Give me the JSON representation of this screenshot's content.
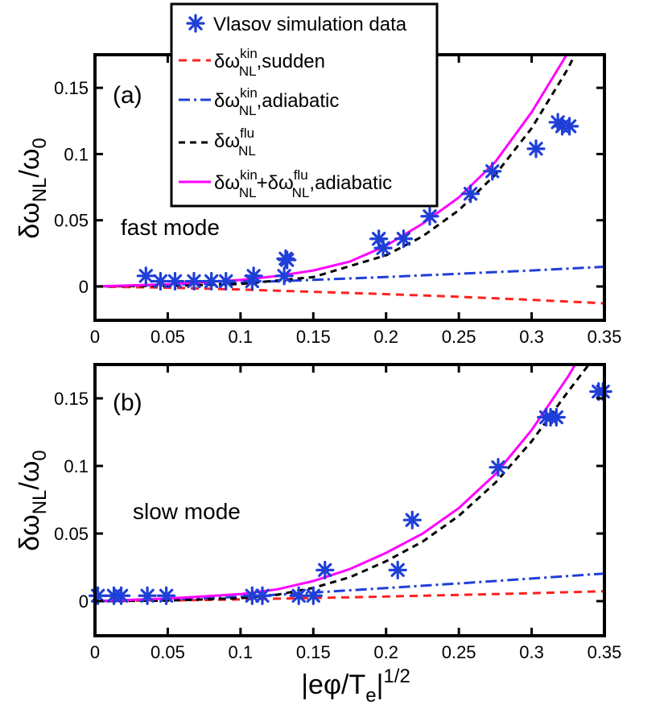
{
  "chart_data": [
    {
      "type": "line",
      "panel_label": "(a)",
      "annotation": "fast mode",
      "xlim": [
        0,
        0.35
      ],
      "ylim": [
        -0.013,
        0.175
      ],
      "xticks": [
        {
          "value": 0,
          "label": "0"
        },
        {
          "value": 0.05,
          "label": "0.05"
        },
        {
          "value": 0.1,
          "label": "0.1"
        },
        {
          "value": 0.15,
          "label": "0.15"
        },
        {
          "value": 0.2,
          "label": "0.2"
        },
        {
          "value": 0.25,
          "label": "0.25"
        },
        {
          "value": 0.3,
          "label": "0.3"
        },
        {
          "value": 0.35,
          "label": "0.35"
        }
      ],
      "yticks": [
        {
          "value": 0,
          "label": "0"
        },
        {
          "value": 0.05,
          "label": "0.05"
        },
        {
          "value": 0.1,
          "label": "0.1"
        },
        {
          "value": 0.15,
          "label": "0.15"
        }
      ],
      "series": [
        {
          "name": "kin_sudden",
          "color": "#ff2020",
          "dash": "10,7",
          "x": [
            0,
            0.05,
            0.1,
            0.15,
            0.2,
            0.25,
            0.3,
            0.35
          ],
          "y": [
            0,
            -0.0009,
            -0.0023,
            -0.004,
            -0.0058,
            -0.0078,
            -0.0101,
            -0.0127
          ]
        },
        {
          "name": "kin_adiabatic",
          "color": "#1f3fd8",
          "dash": "14,5,3,5",
          "x": [
            0,
            0.05,
            0.1,
            0.15,
            0.2,
            0.25,
            0.3,
            0.35
          ],
          "y": [
            0,
            0.0012,
            0.003,
            0.005,
            0.0072,
            0.0096,
            0.0121,
            0.0149
          ]
        },
        {
          "name": "flu",
          "color": "#000000",
          "dash": "8,6",
          "x": [
            0,
            0.05,
            0.1,
            0.15,
            0.2,
            0.225,
            0.25,
            0.275,
            0.3,
            0.325,
            0.35
          ],
          "y": [
            0,
            0.0005,
            0.0019,
            0.0071,
            0.0236,
            0.0378,
            0.0576,
            0.0844,
            0.1195,
            0.1646,
            0.2211
          ]
        },
        {
          "name": "total_adiabatic",
          "color": "#ff00ff",
          "dash": "",
          "x": [
            0,
            0.05,
            0.1,
            0.125,
            0.15,
            0.175,
            0.2,
            0.225,
            0.25,
            0.275,
            0.3,
            0.325,
            0.35
          ],
          "y": [
            0,
            0.0017,
            0.0049,
            0.0079,
            0.0121,
            0.0188,
            0.0308,
            0.0474,
            0.0672,
            0.094,
            0.1316,
            0.1767,
            0.236
          ]
        }
      ],
      "scatter": {
        "name": "Vlasov simulation data",
        "color": "#1f3fd8",
        "x": [
          0.035,
          0.045,
          0.055,
          0.068,
          0.08,
          0.09,
          0.108,
          0.109,
          0.13,
          0.132,
          0.131,
          0.195,
          0.198,
          0.212,
          0.23,
          0.258,
          0.273,
          0.303,
          0.318,
          0.321,
          0.326
        ],
        "y": [
          0.008,
          0.004,
          0.004,
          0.004,
          0.004,
          0.004,
          0.004,
          0.008,
          0.008,
          0.02,
          0.021,
          0.036,
          0.029,
          0.036,
          0.053,
          0.07,
          0.087,
          0.104,
          0.124,
          0.121,
          0.121
        ]
      }
    },
    {
      "type": "line",
      "panel_label": "(b)",
      "annotation": "slow mode",
      "xlim": [
        0,
        0.35
      ],
      "ylim": [
        -0.013,
        0.175
      ],
      "xticks": [
        {
          "value": 0,
          "label": "0"
        },
        {
          "value": 0.05,
          "label": "0.05"
        },
        {
          "value": 0.1,
          "label": "0.1"
        },
        {
          "value": 0.15,
          "label": "0.15"
        },
        {
          "value": 0.2,
          "label": "0.2"
        },
        {
          "value": 0.25,
          "label": "0.25"
        },
        {
          "value": 0.3,
          "label": "0.3"
        },
        {
          "value": 0.35,
          "label": "0.35"
        }
      ],
      "yticks": [
        {
          "value": 0,
          "label": "0"
        },
        {
          "value": 0.05,
          "label": "0.05"
        },
        {
          "value": 0.1,
          "label": "0.1"
        },
        {
          "value": 0.15,
          "label": "0.15"
        }
      ],
      "series": [
        {
          "name": "kin_sudden",
          "color": "#ff2020",
          "dash": "10,7",
          "x": [
            0,
            0.05,
            0.1,
            0.15,
            0.2,
            0.25,
            0.3,
            0.35
          ],
          "y": [
            0,
            0.0005,
            0.0013,
            0.0023,
            0.0034,
            0.0046,
            0.0059,
            0.0073
          ]
        },
        {
          "name": "kin_adiabatic",
          "color": "#1f3fd8",
          "dash": "14,5,3,5",
          "x": [
            0,
            0.05,
            0.1,
            0.15,
            0.2,
            0.25,
            0.3,
            0.35
          ],
          "y": [
            0,
            0.0012,
            0.0032,
            0.0063,
            0.0097,
            0.0131,
            0.0167,
            0.0204
          ]
        },
        {
          "name": "flu",
          "color": "#000000",
          "dash": "8,6",
          "x": [
            0,
            0.05,
            0.1,
            0.125,
            0.15,
            0.175,
            0.2,
            0.225,
            0.25,
            0.275,
            0.3,
            0.325,
            0.35
          ],
          "y": [
            0,
            0.0004,
            0.0022,
            0.0047,
            0.0098,
            0.0176,
            0.0295,
            0.0439,
            0.0631,
            0.0875,
            0.1182,
            0.155,
            0.19
          ]
        },
        {
          "name": "total_adiabatic",
          "color": "#ff00ff",
          "dash": "",
          "x": [
            0,
            0.05,
            0.1,
            0.125,
            0.15,
            0.175,
            0.2,
            0.225,
            0.25,
            0.275,
            0.3,
            0.325,
            0.35
          ],
          "y": [
            0,
            0.0019,
            0.0052,
            0.0087,
            0.0149,
            0.0237,
            0.0357,
            0.0499,
            0.0688,
            0.0938,
            0.1266,
            0.1661,
            0.2116
          ]
        }
      ],
      "scatter": {
        "name": "Vlasov simulation data",
        "color": "#1f3fd8",
        "x": [
          0.002,
          0.013,
          0.018,
          0.036,
          0.049,
          0.108,
          0.115,
          0.14,
          0.15,
          0.158,
          0.208,
          0.218,
          0.277,
          0.31,
          0.313,
          0.317,
          0.346,
          0.349
        ],
        "y": [
          0.004,
          0.004,
          0.004,
          0.004,
          0.004,
          0.004,
          0.004,
          0.004,
          0.004,
          0.023,
          0.023,
          0.06,
          0.099,
          0.136,
          0.136,
          0.136,
          0.155,
          0.155
        ]
      }
    }
  ],
  "axes": {
    "xlabel": {
      "main": "|eφ/T",
      "sub": "e",
      "tail": "|",
      "sup": "1/2"
    },
    "ylabel": {
      "main": "δω",
      "sub": "NL",
      "slash": "/ω",
      "sub2": "0"
    }
  },
  "legend": {
    "items": [
      {
        "kind": "scatter",
        "color": "#1f3fd8",
        "text": "Vlasov simulation data"
      },
      {
        "kind": "line",
        "color": "#ff2020",
        "dash": "10,7",
        "base": "δω",
        "sup": "kin",
        "sub": "NL",
        "suffix": ",sudden"
      },
      {
        "kind": "line",
        "color": "#1f3fd8",
        "dash": "14,5,3,5",
        "base": "δω",
        "sup": "kin",
        "sub": "NL",
        "suffix": ",adiabatic"
      },
      {
        "kind": "line",
        "color": "#000000",
        "dash": "8,6",
        "base": "δω",
        "sup": "flu",
        "sub": "NL",
        "suffix": ""
      },
      {
        "kind": "line",
        "color": "#ff00ff",
        "dash": "",
        "base": "δω",
        "sup": "kin",
        "sub": "NL",
        "plus": "+δω",
        "sup2": "flu",
        "sub2": "NL",
        "suffix": ",adiabatic"
      }
    ]
  }
}
